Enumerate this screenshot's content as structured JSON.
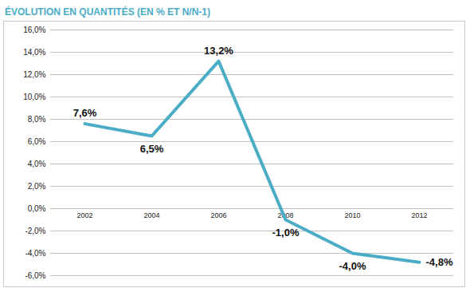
{
  "chart_data": {
    "type": "line",
    "title": "ÉVOLUTION EN QUANTITÉS (EN % ET N/N-1)",
    "categories": [
      "2002",
      "2004",
      "2006",
      "2008",
      "2010",
      "2012"
    ],
    "values": [
      7.6,
      6.5,
      13.2,
      -1.0,
      -4.0,
      -4.8
    ],
    "value_labels": [
      "7,6%",
      "6,5%",
      "13,2%",
      "-1,0%",
      "-4,0%",
      "-4,8%"
    ],
    "color": "#4bacc6",
    "ylim": [
      -6,
      16
    ],
    "yticks": [
      {
        "value": -6,
        "label": "-6,0%"
      },
      {
        "value": -4,
        "label": "-4,0%"
      },
      {
        "value": -2,
        "label": "-2,0%"
      },
      {
        "value": 0,
        "label": "0,0%"
      },
      {
        "value": 2,
        "label": "2,0%"
      },
      {
        "value": 4,
        "label": "4,0%"
      },
      {
        "value": 6,
        "label": "6,0%"
      },
      {
        "value": 8,
        "label": "8,0%"
      },
      {
        "value": 10,
        "label": "10,0%"
      },
      {
        "value": 12,
        "label": "12,0%"
      },
      {
        "value": 14,
        "label": "14,0%"
      },
      {
        "value": 16,
        "label": "16,0%"
      }
    ],
    "grid": true,
    "data_labels": true
  }
}
